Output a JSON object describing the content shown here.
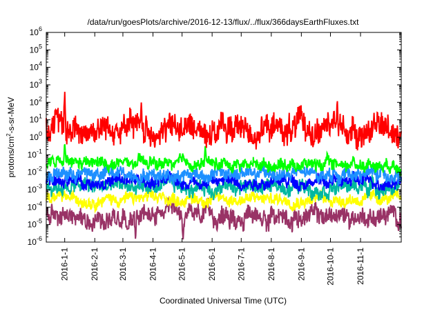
{
  "chart_data": {
    "type": "line",
    "title": "/data/run/goesPlots/archive/2016-12-13/flux/../flux/366daysEarthFluxes.txt",
    "xlabel": "Coordinated Universal Time (UTC)",
    "ylabel": "protons/cm²-s-sr-MeV",
    "ylabel_parts": {
      "before": "protons/cm",
      "sup": "2",
      "after": "-s-sr-MeV"
    },
    "x_range": [
      "2015-12-13",
      "2016-12-13"
    ],
    "y_range": [
      1e-06,
      1000000.0
    ],
    "y_scale": "log",
    "y_ticks": [
      {
        "value": 1e-06,
        "base": "10",
        "exp": "-6"
      },
      {
        "value": 1e-05,
        "base": "10",
        "exp": "-5"
      },
      {
        "value": 0.0001,
        "base": "10",
        "exp": "-4"
      },
      {
        "value": 0.001,
        "base": "10",
        "exp": "-3"
      },
      {
        "value": 0.01,
        "base": "10",
        "exp": "-2"
      },
      {
        "value": 0.1,
        "base": "10",
        "exp": "-1"
      },
      {
        "value": 1,
        "base": "10",
        "exp": "0"
      },
      {
        "value": 10,
        "base": "10",
        "exp": "1"
      },
      {
        "value": 100,
        "base": "10",
        "exp": "2"
      },
      {
        "value": 1000,
        "base": "10",
        "exp": "3"
      },
      {
        "value": 10000,
        "base": "10",
        "exp": "4"
      },
      {
        "value": 100000,
        "base": "10",
        "exp": "5"
      },
      {
        "value": 1000000,
        "base": "10",
        "exp": "6"
      }
    ],
    "x_ticks": [
      "2016-1-1",
      "2016-2-1",
      "2016-3-1",
      "2016-4-1",
      "2016-5-1",
      "2016-6-1",
      "2016-7-1",
      "2016-8-1",
      "2016-9-1",
      "2016-10-1",
      "2016-11-1"
    ],
    "grid": false,
    "legend": "none",
    "series": [
      {
        "color": "#993366",
        "baseline": 3e-05,
        "spread": 0.55,
        "spikes": [
          {
            "x": "2016-3-14",
            "y": 1.2e-06
          },
          {
            "x": "2016-5-2",
            "y": 1.2e-06
          }
        ]
      },
      {
        "color": "#ffff00",
        "baseline": 0.0003,
        "spread": 0.35,
        "spikes": []
      },
      {
        "color": "#00b8a0",
        "baseline": 0.0015,
        "spread": 0.45,
        "spikes": []
      },
      {
        "color": "#0000ff",
        "baseline": 0.003,
        "spread": 0.35,
        "spikes": [
          {
            "x": "2016-1-2",
            "y": 0.01
          }
        ]
      },
      {
        "color": "#1e90ff",
        "baseline": 0.008,
        "spread": 0.4,
        "spikes": []
      },
      {
        "color": "#00ff00",
        "baseline": 0.03,
        "spread": 0.35,
        "spikes": [
          {
            "x": "2016-1-1",
            "y": 0.5
          },
          {
            "x": "2016-5-25",
            "y": 0.4
          }
        ]
      },
      {
        "color": "#ff0000",
        "baseline": 3,
        "spread": 0.8,
        "spikes": [
          {
            "x": "2016-1-1",
            "y": 600
          },
          {
            "x": "2016-3-20",
            "y": 100
          },
          {
            "x": "2016-10-8",
            "y": 150
          }
        ]
      }
    ]
  }
}
